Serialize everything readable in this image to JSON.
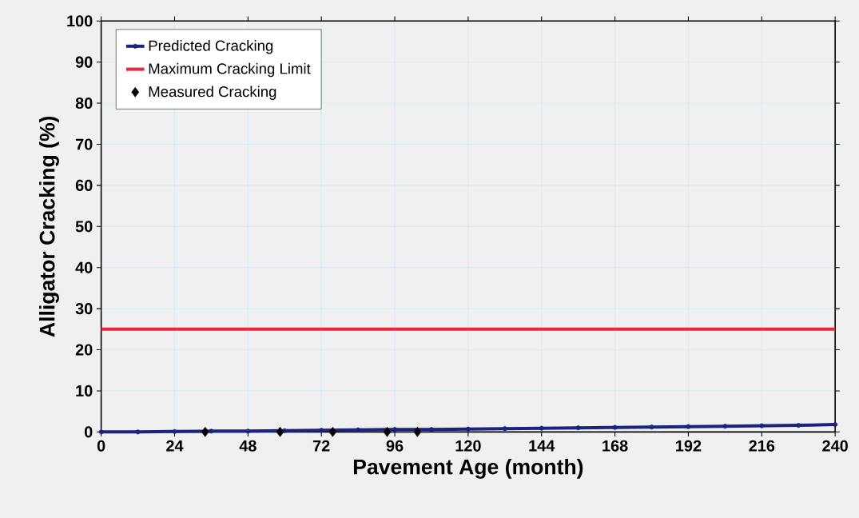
{
  "chart_data": {
    "type": "line",
    "xlabel": "Pavement Age (month)",
    "ylabel": "Alligator Cracking (%)",
    "xlim": [
      0,
      240
    ],
    "xticks": [
      0,
      24,
      48,
      72,
      96,
      120,
      144,
      168,
      192,
      216,
      240
    ],
    "ylim": [
      0,
      100
    ],
    "yticks": [
      0,
      10,
      20,
      30,
      40,
      50,
      60,
      70,
      80,
      90,
      100
    ],
    "grid": true,
    "legend": "top left",
    "series": [
      {
        "name": "Predicted Cracking",
        "color": "#1a237e",
        "marker": "circle",
        "x": [
          0,
          12,
          24,
          36,
          48,
          60,
          72,
          84,
          96,
          108,
          120,
          132,
          144,
          156,
          168,
          180,
          192,
          204,
          216,
          228,
          240
        ],
        "values": [
          0,
          0,
          0.1,
          0.2,
          0.2,
          0.3,
          0.4,
          0.5,
          0.6,
          0.6,
          0.7,
          0.8,
          0.9,
          1.0,
          1.1,
          1.2,
          1.3,
          1.4,
          1.5,
          1.6,
          1.8
        ]
      },
      {
        "name": "Maximum Cracking Limit",
        "color": "#e8283c",
        "marker": "none",
        "x": [
          0,
          240
        ],
        "values": [
          25,
          25
        ]
      },
      {
        "name": "Measured Cracking",
        "color": "#000000",
        "type": "scatter",
        "marker": "diamond",
        "x": [
          34,
          58.5,
          75.7,
          93.5,
          103.4
        ],
        "values": [
          0,
          0,
          0,
          0,
          0
        ]
      }
    ]
  }
}
